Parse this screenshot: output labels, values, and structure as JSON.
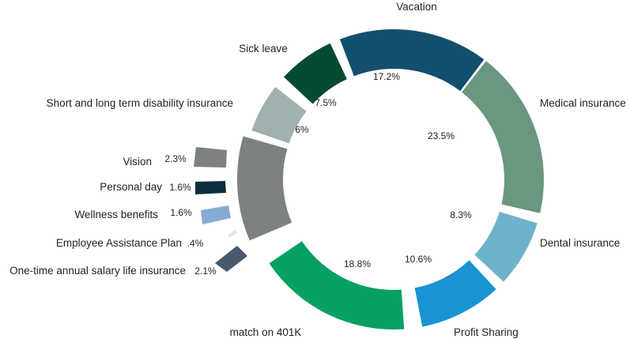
{
  "chart_data": {
    "type": "pie",
    "title": "",
    "slices": [
      {
        "label": "Vacation",
        "value": 17.2,
        "value_label": "17.2%",
        "color": "#134f6e"
      },
      {
        "label": "Medical insurance",
        "value": 23.5,
        "value_label": "23.5%",
        "color": "#69977f"
      },
      {
        "label": "Dental insurance",
        "value": 8.3,
        "value_label": "8.3%",
        "color": "#6db2c8"
      },
      {
        "label": "Profit Sharing",
        "value": 10.6,
        "value_label": "10.6%",
        "color": "#1a92d3"
      },
      {
        "label": "match on 401K",
        "value": 18.8,
        "value_label": "18.8%",
        "color": "#06a063"
      },
      {
        "label": "One-time annual salary life insurance",
        "value": 2.1,
        "value_label": "2.1%",
        "color": "#465a6c"
      },
      {
        "label": "Employee Assistance Plan",
        "value": 0.4,
        "value_label": ".4%",
        "color": "#dfe5ee"
      },
      {
        "label": "Wellness benefits",
        "value": 1.6,
        "value_label": "1.6%",
        "color": "#86abd2"
      },
      {
        "label": "Personal day",
        "value": 1.6,
        "value_label": "1.6%",
        "color": "#0b2f3c"
      },
      {
        "label": "Vision",
        "value": 2.3,
        "value_label": "2.3%",
        "color": "#7d8181"
      },
      {
        "label": "Short and long term disability insurance",
        "value": 6,
        "value_label": "6%",
        "color": "#a0b1af"
      },
      {
        "label": "Sick leave",
        "value": 7.5,
        "value_label": "7.5%",
        "color": "#054a32"
      }
    ],
    "inner_left_segment": {
      "color": "#7d8181"
    },
    "legend": "none"
  }
}
